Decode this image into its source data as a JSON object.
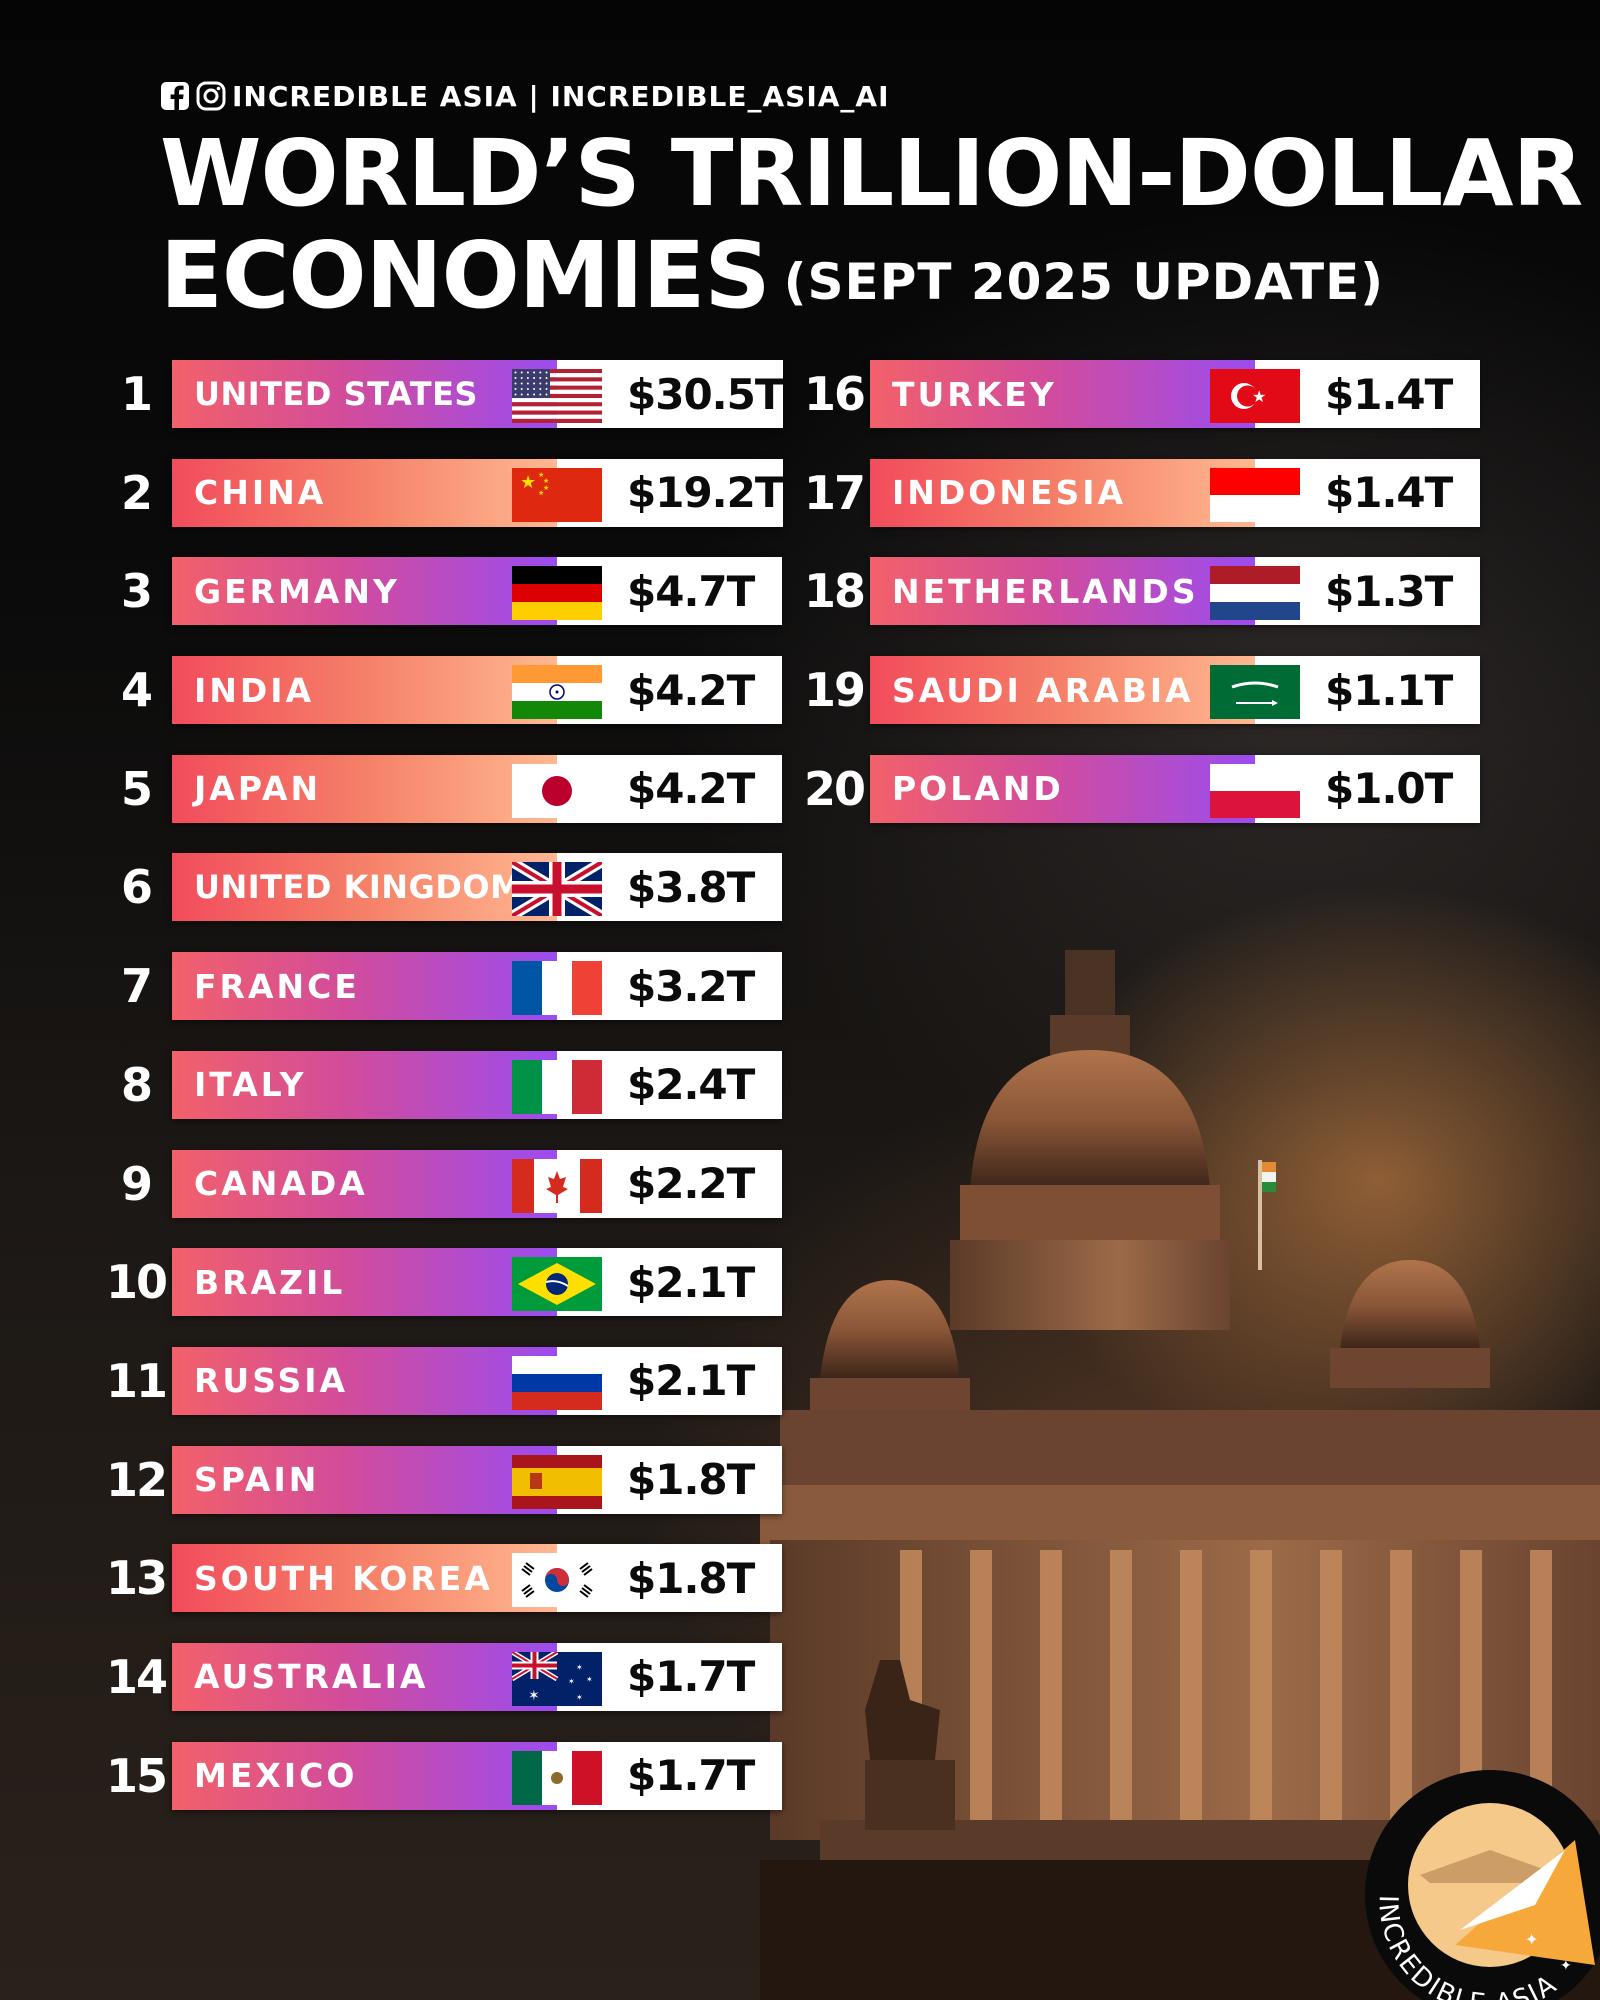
{
  "header": {
    "social_text": "INCREDIBLE ASIA | INCREDIBLE_ASIA_AI",
    "title_line1": "WORLD’S TRILLION-DOLLAR",
    "title_line2": "ECONOMIES",
    "title_sub": "(SEPT 2025 UPDATE)"
  },
  "economies": [
    {
      "rank": "1",
      "country": "UNITED STATES",
      "gdp": "$30.5T",
      "flag": "us-flag"
    },
    {
      "rank": "2",
      "country": "CHINA",
      "gdp": "$19.2T",
      "flag": "china-flag"
    },
    {
      "rank": "3",
      "country": "GERMANY",
      "gdp": "$4.7T",
      "flag": "germany-flag"
    },
    {
      "rank": "4",
      "country": "INDIA",
      "gdp": "$4.2T",
      "flag": "india-flag"
    },
    {
      "rank": "5",
      "country": "JAPAN",
      "gdp": "$4.2T",
      "flag": "japan-flag"
    },
    {
      "rank": "6",
      "country": "UNITED KINGDOM",
      "gdp": "$3.8T",
      "flag": "uk-flag"
    },
    {
      "rank": "7",
      "country": "FRANCE",
      "gdp": "$3.2T",
      "flag": "france-flag"
    },
    {
      "rank": "8",
      "country": "ITALY",
      "gdp": "$2.4T",
      "flag": "italy-flag"
    },
    {
      "rank": "9",
      "country": "CANADA",
      "gdp": "$2.2T",
      "flag": "canada-flag"
    },
    {
      "rank": "10",
      "country": "BRAZIL",
      "gdp": "$2.1T",
      "flag": "brazil-flag"
    },
    {
      "rank": "11",
      "country": "RUSSIA",
      "gdp": "$2.1T",
      "flag": "russia-flag"
    },
    {
      "rank": "12",
      "country": "SPAIN",
      "gdp": "$1.8T",
      "flag": "spain-flag"
    },
    {
      "rank": "13",
      "country": "SOUTH KOREA",
      "gdp": "$1.8T",
      "flag": "south-korea-flag"
    },
    {
      "rank": "14",
      "country": "AUSTRALIA",
      "gdp": "$1.7T",
      "flag": "australia-flag"
    },
    {
      "rank": "15",
      "country": "MEXICO",
      "gdp": "$1.7T",
      "flag": "mexico-flag"
    },
    {
      "rank": "16",
      "country": "TURKEY",
      "gdp": "$1.4T",
      "flag": "turkey-flag"
    },
    {
      "rank": "17",
      "country": "INDONESIA",
      "gdp": "$1.4T",
      "flag": "indonesia-flag"
    },
    {
      "rank": "18",
      "country": "NETHERLANDS",
      "gdp": "$1.3T",
      "flag": "netherlands-flag"
    },
    {
      "rank": "19",
      "country": "SAUDI ARABIA",
      "gdp": "$1.1T",
      "flag": "saudi-arabia-flag"
    },
    {
      "rank": "20",
      "country": "POLAND",
      "gdp": "$1.0T",
      "flag": "poland-flag"
    }
  ],
  "logo": {
    "text": "INCREDIBLE ASIA"
  },
  "colors": {
    "background": "#050505",
    "bar_purple_end": "#9b4cf0",
    "bar_orange_end": "#ffb891",
    "bar_start": "#f2616a",
    "value_bg": "#ffffff"
  }
}
